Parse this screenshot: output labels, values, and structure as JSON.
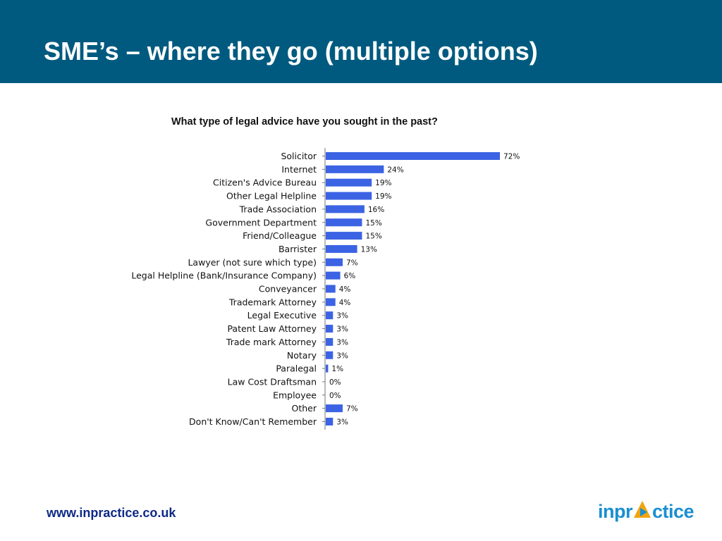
{
  "header": {
    "title": "SME’s – where they go (multiple options)"
  },
  "footer": {
    "url": "www.inpractice.co.uk",
    "logo_left": "inpr",
    "logo_right": "ctice",
    "logo_text": "inpractice"
  },
  "colors": {
    "header_bg": "#005a7f",
    "bar": "#3b63e3",
    "logo_blue": "#1a8fd0",
    "logo_orange": "#f2a30f"
  },
  "chart_data": {
    "type": "bar",
    "orientation": "horizontal",
    "title": "What type of legal advice have you sought in the past?",
    "categories": [
      "Solicitor",
      "Internet",
      "Citizen's Advice Bureau",
      "Other Legal Helpline",
      "Trade Association",
      "Government Department",
      "Friend/Colleague",
      "Barrister",
      "Lawyer (not sure which type)",
      "Legal Helpline (Bank/Insurance Company)",
      "Conveyancer",
      "Trademark Attorney",
      "Legal Executive",
      "Patent Law Attorney",
      "Trade mark Attorney",
      "Notary",
      "Paralegal",
      "Law Cost Draftsman",
      "Employee",
      "Other",
      "Don't Know/Can't Remember"
    ],
    "values": [
      72,
      24,
      19,
      19,
      16,
      15,
      15,
      13,
      7,
      6,
      4,
      4,
      3,
      3,
      3,
      3,
      1,
      0,
      0,
      7,
      3
    ],
    "labels": [
      "72%",
      "24%",
      "19%",
      "19%",
      "16%",
      "15%",
      "15%",
      "13%",
      "7%",
      "6%",
      "4%",
      "4%",
      "3%",
      "3%",
      "3%",
      "3%",
      "1%",
      "0%",
      "0%",
      "7%",
      "3%"
    ],
    "xlim": [
      0,
      72
    ],
    "grid": false,
    "legend": "none"
  }
}
